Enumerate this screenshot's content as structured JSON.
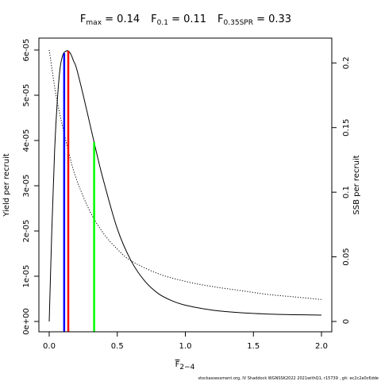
{
  "chart_data": {
    "type": "line",
    "title_parts": [
      {
        "main": "F",
        "sub": "max",
        "rest": " = 0.14"
      },
      {
        "main": "F",
        "sub": "0.1",
        "rest": " = 0.11"
      },
      {
        "main": "F",
        "sub": "0.35SPR",
        "rest": " = 0.33"
      }
    ],
    "xlabel": {
      "main": "F",
      "sub": "2−4"
    },
    "ylabel_left": "Yield per recruit",
    "ylabel_right": "SSB per recruit",
    "xlim": [
      0,
      2
    ],
    "ylim_left": [
      0,
      6e-05
    ],
    "ylim_right": [
      0,
      0.21
    ],
    "x_ticks": [
      "0.0",
      "0.5",
      "1.0",
      "1.5",
      "2.0"
    ],
    "x_tick_values": [
      0,
      0.5,
      1,
      1.5,
      2
    ],
    "y_left_ticks": [
      "0e+00",
      "1e-05",
      "2e-05",
      "3e-05",
      "4e-05",
      "5e-05",
      "6e-05"
    ],
    "y_left_tick_values": [
      0,
      1e-05,
      2e-05,
      3e-05,
      4e-05,
      5e-05,
      6e-05
    ],
    "y_right_ticks": [
      "0",
      "0.05",
      "0.1",
      "0.15",
      "0.2"
    ],
    "y_right_tick_values": [
      0,
      0.05,
      0.1,
      0.15,
      0.2
    ],
    "series": [
      {
        "line": "solid",
        "color": "#000000",
        "axis": "left",
        "x": [
          0,
          0.02,
          0.04,
          0.06,
          0.08,
          0.1,
          0.12,
          0.14,
          0.16,
          0.18,
          0.2,
          0.25,
          0.3,
          0.35,
          0.4,
          0.5,
          0.6,
          0.7,
          0.8,
          0.9,
          1.0,
          1.2,
          1.4,
          1.6,
          1.8,
          2.0
        ],
        "y": [
          0.0,
          2.1e-05,
          3.8e-05,
          4.9e-05,
          5.6e-05,
          5.89e-05,
          5.97e-05,
          5.98e-05,
          5.9e-05,
          5.75e-05,
          5.6e-05,
          5e-05,
          4.35e-05,
          3.7e-05,
          3.1e-05,
          2.05e-05,
          1.35e-05,
          9e-06,
          6.2e-06,
          4.6e-06,
          3.6e-06,
          2.5e-06,
          1.95e-06,
          1.65e-06,
          1.5e-06,
          1.4e-06
        ]
      },
      {
        "line": "dotted",
        "color": "#000000",
        "axis": "right",
        "x": [
          0,
          0.05,
          0.1,
          0.15,
          0.2,
          0.3,
          0.4,
          0.5,
          0.6,
          0.8,
          1.0,
          1.2,
          1.4,
          1.6,
          1.8,
          2.0
        ],
        "y": [
          0.21,
          0.175,
          0.15,
          0.128,
          0.11,
          0.085,
          0.068,
          0.056,
          0.047,
          0.037,
          0.031,
          0.027,
          0.024,
          0.021,
          0.019,
          0.017
        ]
      }
    ],
    "reference_lines": [
      {
        "x": 0.11,
        "color": "#0000ff",
        "to_series": 0
      },
      {
        "x": 0.14,
        "color": "#ff0000",
        "to_series": 0
      },
      {
        "x": 0.33,
        "color": "#00ff00",
        "to_series": 0
      }
    ],
    "footnote": "stockassessment.org, IV Shaddock  WGNSSK2022  2021withQ1,  r15739 ,  git:  ec2c2a0c6dde"
  }
}
